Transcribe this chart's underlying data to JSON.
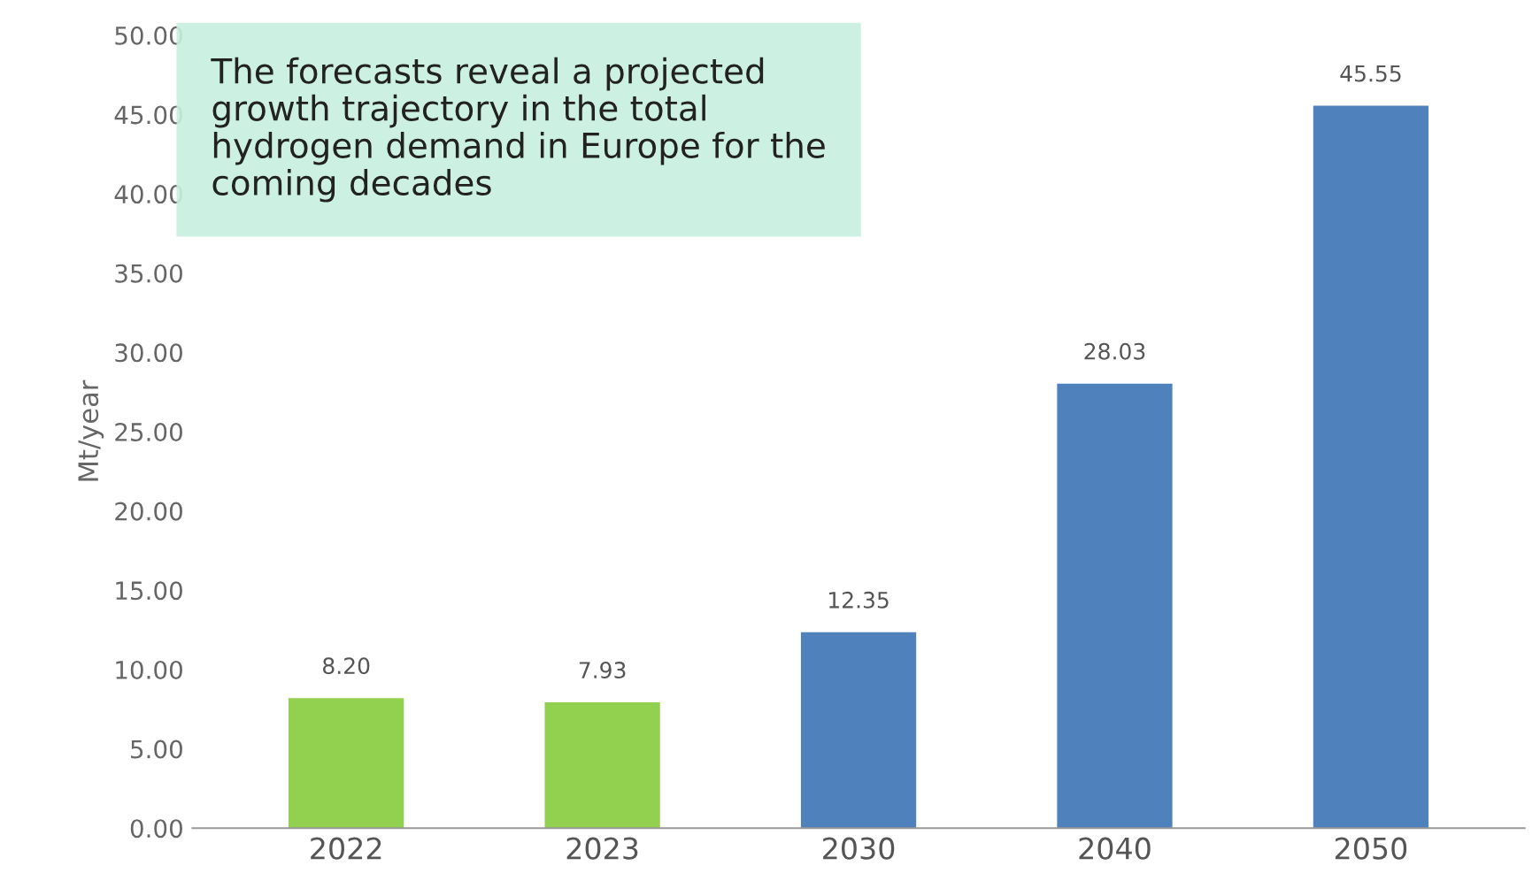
{
  "chart_data": {
    "type": "bar",
    "categories": [
      "2022",
      "2023",
      "2030",
      "2040",
      "2050"
    ],
    "values": [
      8.2,
      7.93,
      12.35,
      28.03,
      45.55
    ],
    "colors": [
      "#92d050",
      "#92d050",
      "#4f81bd",
      "#4f81bd",
      "#4f81bd"
    ],
    "value_labels": [
      "8.20",
      "7.93",
      "12.35",
      "28.03",
      "45.55"
    ],
    "ylabel": "Mt/year",
    "ylim": [
      0,
      50
    ],
    "yticks": [
      {
        "value": 0,
        "label": "0.00"
      },
      {
        "value": 5,
        "label": "5.00"
      },
      {
        "value": 10,
        "label": "10.00"
      },
      {
        "value": 15,
        "label": "15.00"
      },
      {
        "value": 20,
        "label": "20.00"
      },
      {
        "value": 25,
        "label": "25.00"
      },
      {
        "value": 30,
        "label": "30.00"
      },
      {
        "value": 35,
        "label": "35.00"
      },
      {
        "value": 40,
        "label": "40.00"
      },
      {
        "value": 45,
        "label": "45.00"
      },
      {
        "value": 50,
        "label": "50.00"
      }
    ],
    "grid": false,
    "annotations": [
      "The forecasts reveal a projected\ngrowth trajectory in the total\nhydrogen demand in Europe for the\ncoming decades"
    ]
  }
}
